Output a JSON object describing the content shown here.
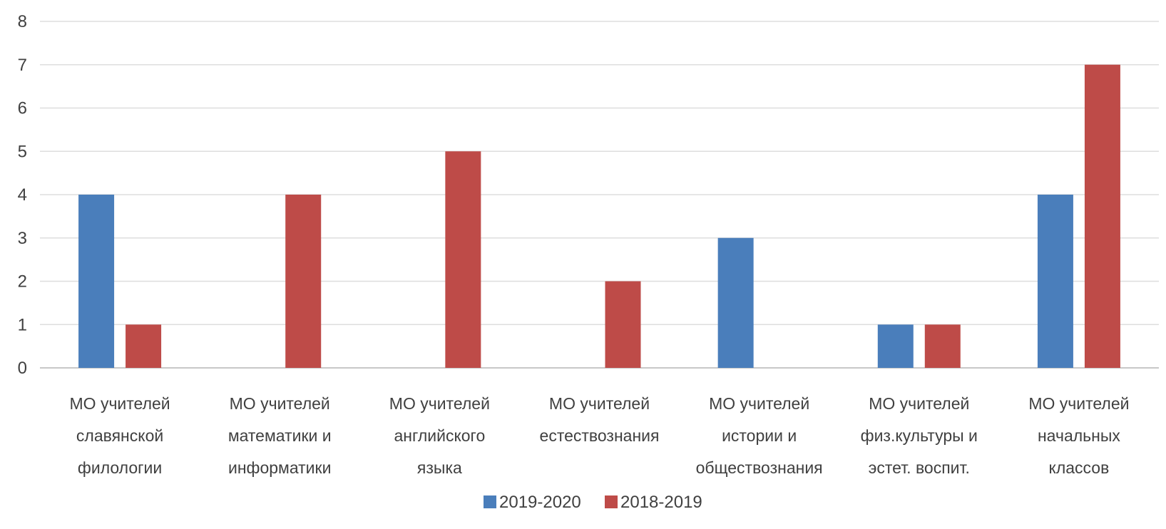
{
  "chart_data": {
    "type": "bar",
    "categories": [
      [
        "МО учителей",
        "славянской",
        "филологии"
      ],
      [
        "МО учителей",
        "математики и",
        "информатики"
      ],
      [
        "МО учителей",
        "английского",
        "языка"
      ],
      [
        "МО учителей",
        "естествознания"
      ],
      [
        "МО учителей",
        "истории и",
        "обществознания"
      ],
      [
        "МО учителей",
        "физ.культуры и",
        "эстет. воспит."
      ],
      [
        "МО учителей",
        "начальных",
        "классов"
      ]
    ],
    "series": [
      {
        "name": "2019-2020",
        "color": "#4a7ebb",
        "values": [
          4,
          0,
          0,
          0,
          3,
          1,
          4
        ]
      },
      {
        "name": "2018-2019",
        "color": "#be4b48",
        "values": [
          1,
          4,
          5,
          2,
          0,
          1,
          7
        ]
      }
    ],
    "ylim": [
      0,
      8
    ],
    "yticks": [
      "0",
      "1",
      "2",
      "3",
      "4",
      "5",
      "6",
      "7",
      "8"
    ],
    "grid": true,
    "legend_position": "bottom"
  }
}
